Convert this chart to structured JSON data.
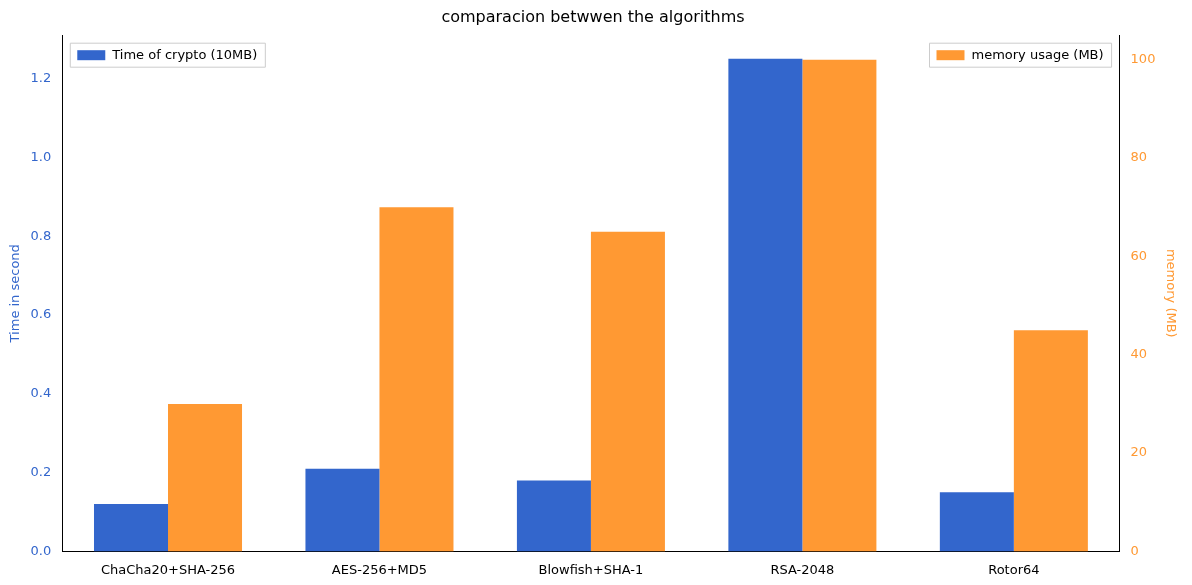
{
  "chart_data": {
    "type": "bar",
    "title": "comparacion betwwen the algorithms",
    "ylabel": "Time in second",
    "y2label": "memory (MB)",
    "categories": [
      "ChaCha20+SHA-256",
      "AES-256+MD5",
      "Blowfish+SHA-1",
      "RSA-2048",
      "Rotor64"
    ],
    "series": [
      {
        "name": "Time of crypto (10MB)",
        "color": "#3366cc",
        "values": [
          0.12,
          0.21,
          0.18,
          1.25,
          0.15
        ]
      },
      {
        "name": "memory usage (MB)",
        "color": "#ff9933",
        "axis": "y2",
        "values": [
          30,
          70,
          65,
          100,
          45
        ]
      }
    ],
    "ylim": [
      0,
      1.31
    ],
    "yticks": [
      {
        "value": 0,
        "label": "0.0"
      },
      {
        "value": 0.2,
        "label": "0.2"
      },
      {
        "value": 0.4,
        "label": "0.4"
      },
      {
        "value": 0.6,
        "label": "0.6"
      },
      {
        "value": 0.8,
        "label": "0.8"
      },
      {
        "value": 1,
        "label": "1.0"
      },
      {
        "value": 1.2,
        "label": "1.2"
      }
    ],
    "y2lim": [
      0,
      105
    ],
    "y2ticks": [
      0,
      20,
      40,
      60,
      80,
      100
    ],
    "legend": "top",
    "grid": false
  }
}
